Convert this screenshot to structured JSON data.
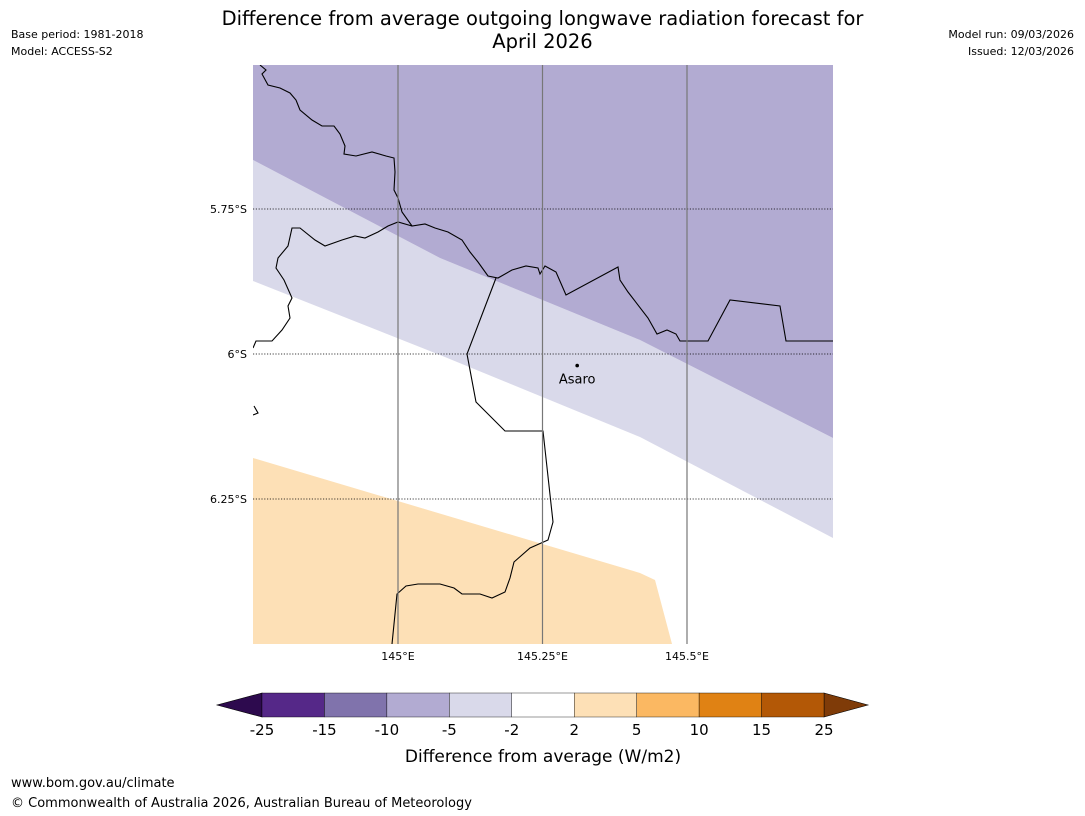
{
  "header": {
    "base_period": "Base period: 1981-2018",
    "model": "Model: ACCESS-S2",
    "model_run": "Model run: 09/03/2026",
    "issued": "Issued: 12/03/2026",
    "title_line1": "Difference from average outgoing longwave radiation forecast for",
    "title_line2": "April 2026"
  },
  "map": {
    "place": {
      "name": "Asaro",
      "lat": -6.02,
      "lon": 145.31
    },
    "lat_labels": [
      "5.75°S",
      "6°S",
      "6.25°S"
    ],
    "lon_labels": [
      "145°E",
      "145.25°E",
      "145.5°E"
    ],
    "colors": {
      "band_minus10_minus5": "#b2abd2",
      "band_minus5_minus2": "#d9d9ea",
      "band_minus2_2": "#ffffff",
      "band_2_5": "#fde0b6"
    }
  },
  "colorbar": {
    "label": "Difference from average (W/m2)",
    "ticks": [
      "-25",
      "-15",
      "-10",
      "-5",
      "-2",
      "2",
      "5",
      "10",
      "15",
      "25"
    ],
    "colors": [
      "#552888",
      "#8073ac",
      "#b2abd2",
      "#d9d9ea",
      "#ffffff",
      "#fde0b6",
      "#fbb862",
      "#e08214",
      "#b35806"
    ],
    "under_color": "#2d0a4e",
    "over_color": "#7f3b08"
  },
  "footer": {
    "url": "www.bom.gov.au/climate",
    "copyright": "© Commonwealth of Australia 2026, Australian Bureau of Meteorology"
  }
}
